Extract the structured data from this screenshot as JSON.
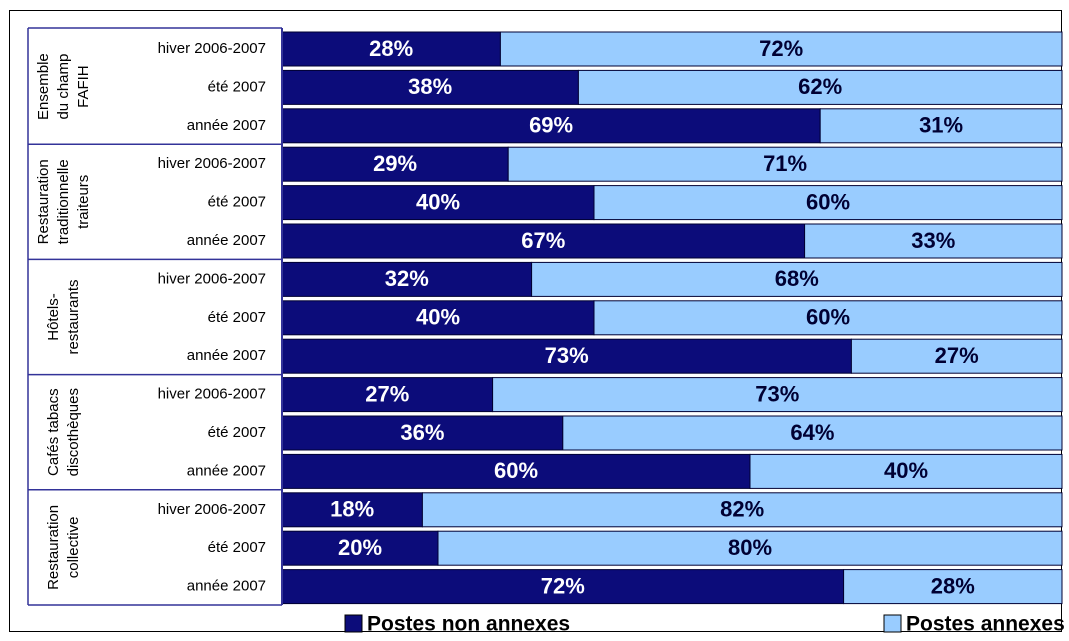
{
  "chart_data": {
    "type": "stacked-bar-horizontal",
    "xlim": [
      0,
      100
    ],
    "groups": [
      {
        "lines": [
          "Ensemble",
          "du champ",
          "FAFIH"
        ],
        "categories": [
          "hiver 2006-2007",
          "été 2007",
          "année 2007"
        ]
      },
      {
        "lines": [
          "Restauration",
          "traditionnelle",
          "traiteurs"
        ],
        "categories": [
          "hiver 2006-2007",
          "été 2007",
          "année 2007"
        ]
      },
      {
        "lines": [
          "Hôtels-",
          "restaurants"
        ],
        "categories": [
          "hiver 2006-2007",
          "été 2007",
          "année 2007"
        ]
      },
      {
        "lines": [
          "Cafés tabacs",
          "discothèques"
        ],
        "categories": [
          "hiver 2006-2007",
          "été 2007",
          "année 2007"
        ]
      },
      {
        "lines": [
          "Restauration",
          "collective"
        ],
        "categories": [
          "hiver 2006-2007",
          "été 2007",
          "année 2007"
        ]
      }
    ],
    "series": [
      {
        "name": "Postes non annexes",
        "color": "#0c0c7a",
        "label_color": "#ffffff",
        "values": [
          28,
          38,
          69,
          29,
          40,
          67,
          32,
          40,
          73,
          27,
          36,
          60,
          18,
          20,
          72
        ],
        "value_labels": [
          "28%",
          "38%",
          "69%",
          "29%",
          "40%",
          "67%",
          "32%",
          "40%",
          "73%",
          "27%",
          "36%",
          "60%",
          "18%",
          "20%",
          "72%"
        ]
      },
      {
        "name": "Postes annexes",
        "color": "#99ccff",
        "label_color": "#000033",
        "values": [
          72,
          62,
          31,
          71,
          60,
          33,
          68,
          60,
          27,
          73,
          64,
          40,
          82,
          80,
          28
        ],
        "value_labels": [
          "72%",
          "62%",
          "31%",
          "71%",
          "60%",
          "33%",
          "68%",
          "60%",
          "27%",
          "73%",
          "64%",
          "40%",
          "82%",
          "80%",
          "28%"
        ]
      }
    ]
  }
}
